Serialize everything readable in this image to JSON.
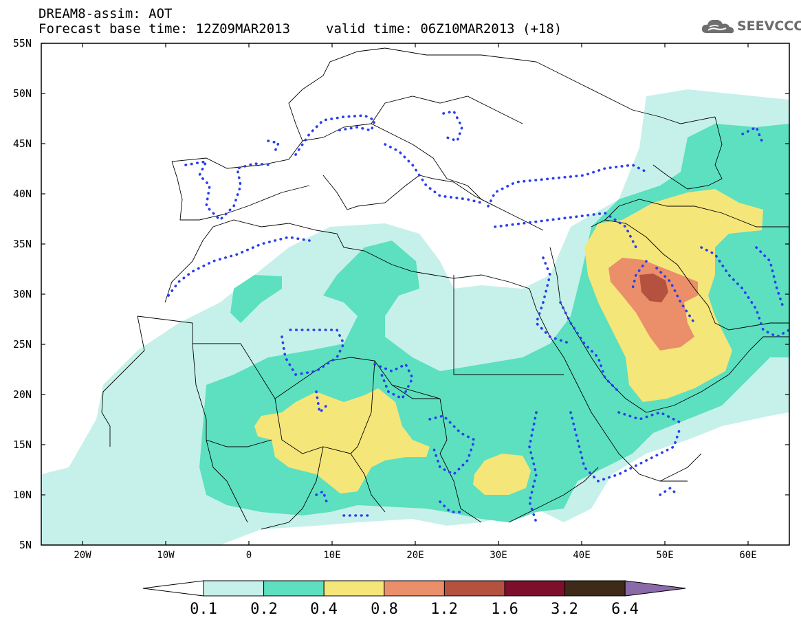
{
  "header": {
    "title": "DREAM8-assim: AOT",
    "base_time": "Forecast base time: 12Z09MAR2013",
    "valid_time": "valid time: 06Z10MAR2013 (+18)"
  },
  "logo": {
    "text": "SEEVCCC",
    "icon": "cloud-icon"
  },
  "map": {
    "lat_labels": [
      "55N",
      "50N",
      "45N",
      "40N",
      "35N",
      "30N",
      "25N",
      "20N",
      "15N",
      "10N",
      "5N"
    ],
    "lon_labels": [
      "20W",
      "10W",
      "0",
      "10E",
      "20E",
      "30E",
      "40E",
      "50E",
      "60E"
    ],
    "lat_range": [
      5,
      55
    ],
    "lon_range": [
      -25,
      65
    ],
    "border_color": "#000000",
    "observation_contour_color": "#2a3ef0"
  },
  "colorbar": {
    "labels": [
      "0.1",
      "0.2",
      "0.4",
      "0.8",
      "1.2",
      "1.6",
      "3.2",
      "6.4"
    ],
    "colors": [
      "#ffffff",
      "#c6f1ea",
      "#5ce0bf",
      "#f5e67a",
      "#eb8f6a",
      "#b4513f",
      "#7d0f2d",
      "#3e2a18",
      "#8a6aa8"
    ]
  }
}
